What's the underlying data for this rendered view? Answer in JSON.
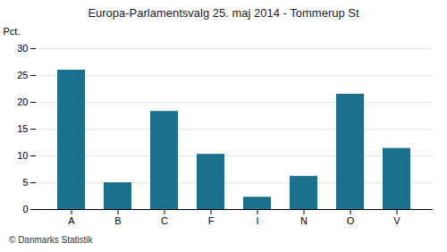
{
  "chart_data": {
    "type": "bar",
    "title": "Europa-Parlamentsvalg 25. maj 2014 - Tommerup St",
    "footer": "© Danmarks Statistik",
    "ylabel": "Pct.",
    "categories": [
      "A",
      "B",
      "C",
      "F",
      "I",
      "N",
      "O",
      "V"
    ],
    "values": [
      26.0,
      5.0,
      18.3,
      10.3,
      2.3,
      6.2,
      21.5,
      11.4
    ],
    "color": "#1a6f8a",
    "ylim": [
      0,
      30
    ],
    "yticks": [
      0,
      5,
      10,
      15,
      20,
      25,
      30
    ],
    "grid": true
  }
}
